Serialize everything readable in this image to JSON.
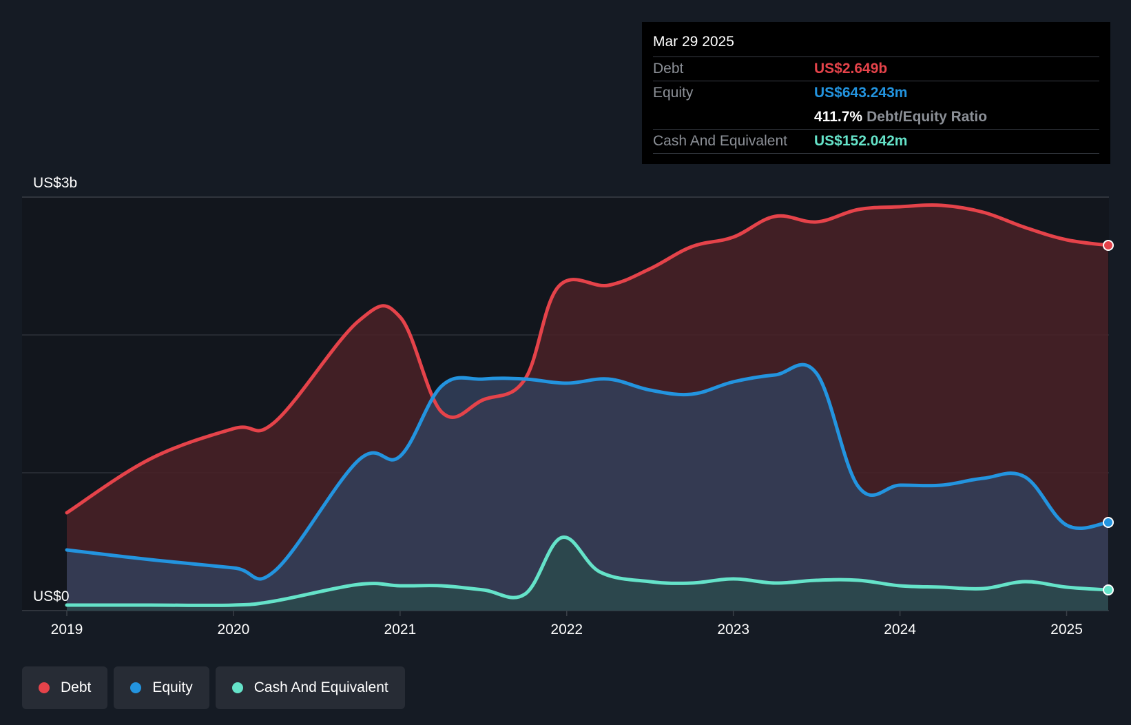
{
  "chart_data": {
    "type": "area",
    "y_axis_labels": [
      "US$3b",
      "US$0"
    ],
    "ylim": [
      0,
      3
    ],
    "y_unit": "US$ billions",
    "x_tick_labels": [
      "2019",
      "2020",
      "2021",
      "2022",
      "2023",
      "2024",
      "2025"
    ],
    "xlim": [
      2019.0,
      2025.25
    ],
    "grid": true,
    "legend_position": "bottom-left",
    "series": [
      {
        "name": "Debt",
        "color": "#e5434a",
        "fill": "#4a2127",
        "x": [
          2019.0,
          2019.5,
          2020.0,
          2020.25,
          2020.75,
          2021.0,
          2021.25,
          2021.5,
          2021.75,
          2021.95,
          2022.25,
          2022.5,
          2022.75,
          2023.0,
          2023.25,
          2023.5,
          2023.75,
          2024.0,
          2024.25,
          2024.5,
          2024.75,
          2025.0,
          2025.25
        ],
        "y": [
          0.71,
          1.1,
          1.32,
          1.37,
          2.1,
          2.13,
          1.44,
          1.53,
          1.68,
          2.35,
          2.36,
          2.48,
          2.64,
          2.71,
          2.86,
          2.82,
          2.91,
          2.93,
          2.94,
          2.89,
          2.78,
          2.69,
          2.65
        ]
      },
      {
        "name": "Equity",
        "color": "#2394df",
        "fill": "#33405b",
        "x": [
          2019.0,
          2019.5,
          2020.0,
          2020.25,
          2020.75,
          2021.0,
          2021.25,
          2021.5,
          2021.75,
          2022.0,
          2022.25,
          2022.5,
          2022.75,
          2023.0,
          2023.25,
          2023.5,
          2023.75,
          2024.0,
          2024.25,
          2024.5,
          2024.75,
          2025.0,
          2025.25
        ],
        "y": [
          0.44,
          0.37,
          0.31,
          0.29,
          1.09,
          1.12,
          1.63,
          1.68,
          1.68,
          1.65,
          1.68,
          1.6,
          1.57,
          1.66,
          1.71,
          1.72,
          0.9,
          0.91,
          0.91,
          0.96,
          0.97,
          0.62,
          0.64
        ]
      },
      {
        "name": "Cash And Equivalent",
        "color": "#65e3c9",
        "fill": "#2c4a4c",
        "x": [
          2019.0,
          2019.5,
          2020.0,
          2020.25,
          2020.75,
          2021.0,
          2021.25,
          2021.5,
          2021.75,
          2021.97,
          2022.2,
          2022.5,
          2022.75,
          2023.0,
          2023.25,
          2023.5,
          2023.75,
          2024.0,
          2024.25,
          2024.5,
          2024.75,
          2025.0,
          2025.25
        ],
        "y": [
          0.04,
          0.04,
          0.04,
          0.07,
          0.19,
          0.18,
          0.18,
          0.15,
          0.12,
          0.53,
          0.28,
          0.21,
          0.2,
          0.23,
          0.2,
          0.22,
          0.22,
          0.18,
          0.17,
          0.16,
          0.21,
          0.17,
          0.15
        ]
      }
    ]
  },
  "tooltip": {
    "date": "Mar 29 2025",
    "debt_label": "Debt",
    "debt_value": "US$2.649b",
    "equity_label": "Equity",
    "equity_value": "US$643.243m",
    "ratio_value": "411.7%",
    "ratio_label": "Debt/Equity Ratio",
    "cash_label": "Cash And Equivalent",
    "cash_value": "US$152.042m"
  },
  "legend": [
    {
      "label": "Debt",
      "color": "#e5434a"
    },
    {
      "label": "Equity",
      "color": "#2394df"
    },
    {
      "label": "Cash And Equivalent",
      "color": "#65e3c9"
    }
  ],
  "colors": {
    "background": "#151b24",
    "plot_background": "#12161d",
    "gridline": "#3a3f47",
    "debt": "#e5434a",
    "equity": "#2394df",
    "cash": "#65e3c9"
  }
}
